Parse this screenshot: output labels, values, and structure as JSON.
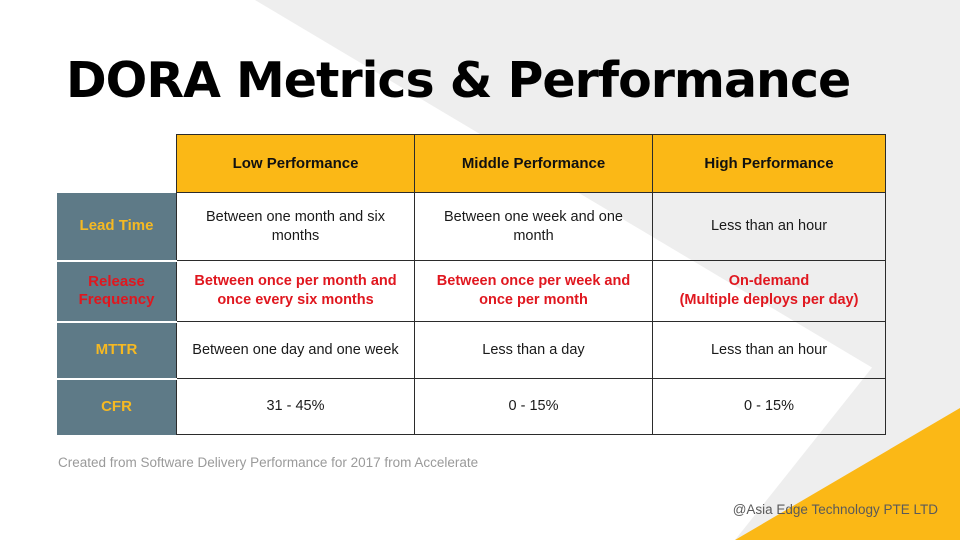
{
  "title": "DORA Metrics & Performance",
  "colors": {
    "accent_yellow": "#fbb816",
    "row_header_bg": "#5e7a87",
    "row_header_text": "#f6b922",
    "emphasis_red": "#e0171f",
    "diagonal_gray": "#eeeeee"
  },
  "table": {
    "columns": [
      "Low Performance",
      "Middle Performance",
      "High Performance"
    ],
    "rows": [
      {
        "label_lines": [
          "Lead Time"
        ],
        "label_color": "#f6b922",
        "emphasis": false,
        "cells": [
          [
            "Between one month and six",
            "months"
          ],
          [
            "Between one week and one",
            "month"
          ],
          [
            "Less than an hour"
          ]
        ]
      },
      {
        "label_lines": [
          "Release",
          "Frequency"
        ],
        "label_color": "#e0171f",
        "emphasis": true,
        "cells": [
          [
            "Between once per month and",
            "once every six months"
          ],
          [
            "Between once per week and",
            "once per month"
          ],
          [
            "On-demand",
            "(Multiple deploys per day)"
          ]
        ]
      },
      {
        "label_lines": [
          "MTTR"
        ],
        "label_color": "#f6b922",
        "emphasis": false,
        "cells": [
          [
            "Between one day and one week"
          ],
          [
            "Less than a day"
          ],
          [
            "Less than an hour"
          ]
        ]
      },
      {
        "label_lines": [
          "CFR"
        ],
        "label_color": "#f6b922",
        "emphasis": false,
        "cells": [
          [
            "31 - 45%"
          ],
          [
            "0 - 15%"
          ],
          [
            "0 - 15%"
          ]
        ]
      }
    ]
  },
  "source_note": "Created from Software Delivery Performance for 2017 from Accelerate",
  "credit": "@Asia Edge Technology PTE LTD"
}
